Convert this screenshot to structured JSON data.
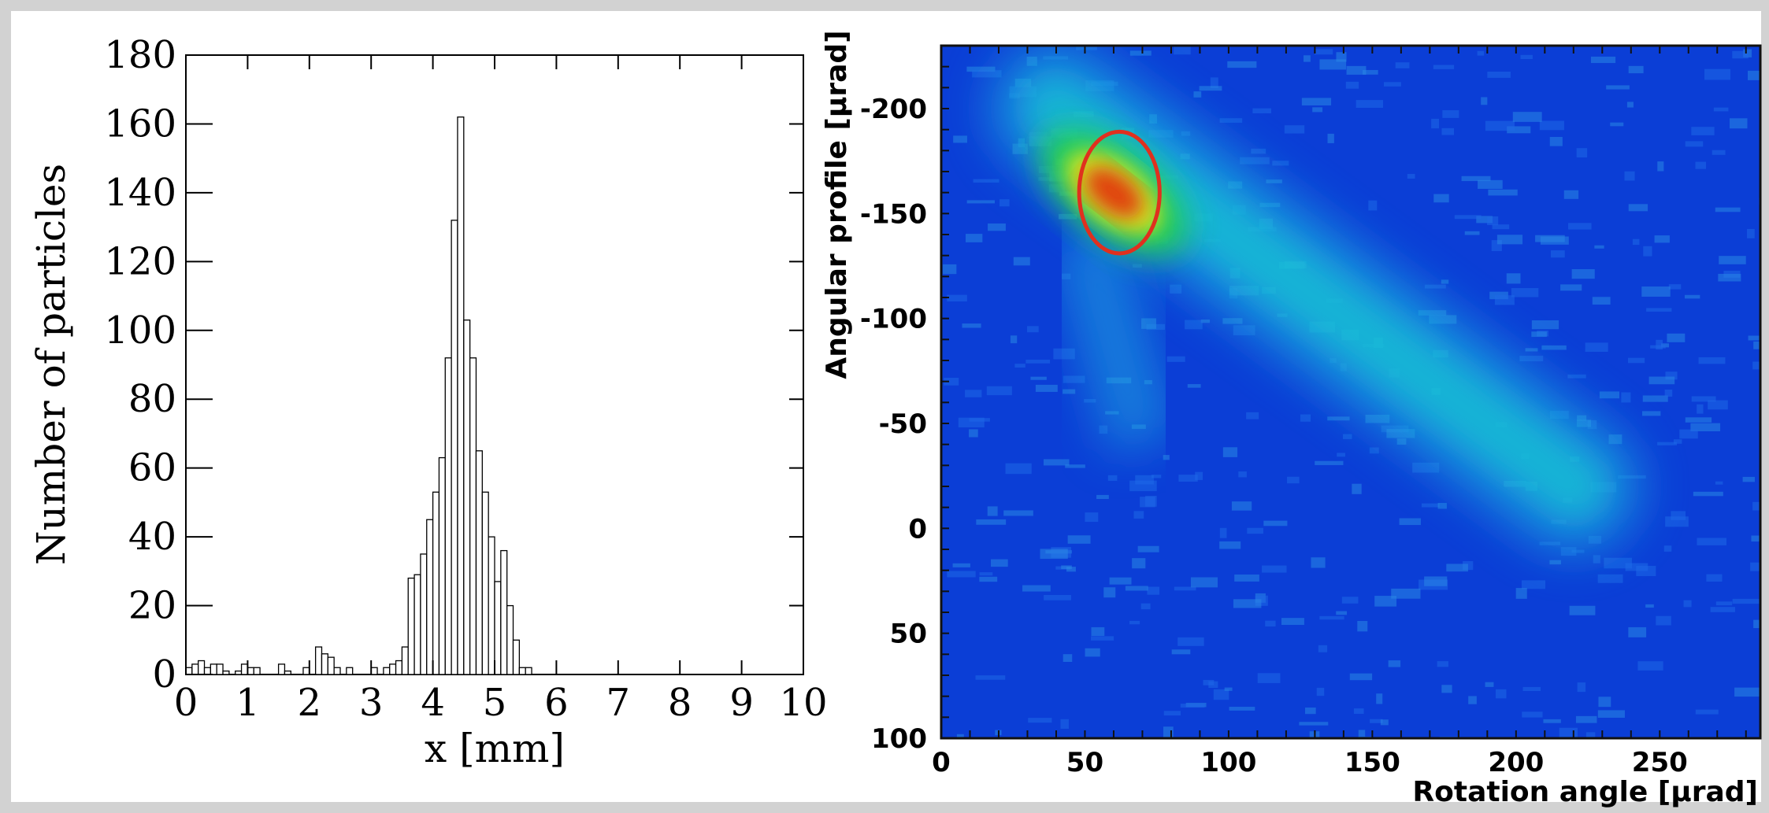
{
  "chart_data": [
    {
      "type": "bar",
      "title": "",
      "xlabel": "x [mm]",
      "ylabel": "Number of particles",
      "xlim": [
        0,
        10
      ],
      "ylim": [
        0,
        180
      ],
      "x_ticks": [
        "0",
        "1",
        "2",
        "3",
        "4",
        "5",
        "6",
        "7",
        "8",
        "9",
        "10"
      ],
      "y_ticks": [
        "0",
        "20",
        "40",
        "60",
        "80",
        "100",
        "120",
        "140",
        "160",
        "180"
      ],
      "bin_width": 0.1,
      "bins_start": 0,
      "values": [
        2,
        3,
        4,
        2,
        3,
        3,
        1,
        0,
        1,
        3,
        2,
        2,
        0,
        0,
        0,
        3,
        1,
        0,
        0,
        2,
        0,
        8,
        6,
        5,
        2,
        0,
        2,
        0,
        0,
        0,
        2,
        0,
        2,
        3,
        4,
        8,
        28,
        29,
        35,
        45,
        53,
        63,
        92,
        132,
        162,
        103,
        92,
        65,
        53,
        40,
        27,
        36,
        20,
        10,
        2,
        2,
        0,
        0,
        0,
        0,
        0,
        0,
        0,
        0,
        0,
        0,
        0,
        0,
        0,
        0,
        0,
        0,
        0,
        0,
        0,
        0,
        0,
        0,
        0,
        0,
        0,
        0,
        0,
        0,
        0,
        0,
        0,
        0,
        0,
        0,
        0,
        0,
        0,
        0,
        0,
        0,
        0,
        0,
        0,
        0
      ],
      "grid": false
    },
    {
      "type": "heatmap",
      "title": "",
      "xlabel": "Rotation angle [µrad]",
      "ylabel": "Angular profile [µrad]",
      "xlim": [
        0,
        285
      ],
      "ylim": [
        -230,
        100
      ],
      "x_ticks": [
        "0",
        "50",
        "100",
        "150",
        "200",
        "250"
      ],
      "y_ticks": [
        "-200",
        "-150",
        "-100",
        "-50",
        "0",
        "50",
        "100"
      ],
      "features": [
        {
          "kind": "band",
          "x": [
            0,
            60
          ],
          "y": 0,
          "level": "high"
        },
        {
          "kind": "band",
          "x": [
            60,
            250
          ],
          "y": 15,
          "level": "high"
        },
        {
          "kind": "band",
          "x": [
            250,
            285
          ],
          "y": 0,
          "level": "high"
        },
        {
          "kind": "diagonal",
          "from": [
            40,
            -200
          ],
          "to": [
            220,
            -20
          ],
          "level": "medium"
        },
        {
          "kind": "peak",
          "x": 60,
          "y": -160,
          "level": "max"
        }
      ],
      "annotation": {
        "shape": "ellipse",
        "cx": 62,
        "cy": -160,
        "rx": 14,
        "ry": 29,
        "color": "#e0301e"
      },
      "colors": {
        "low": "#0a3fd8",
        "mid": "#18d4d0",
        "high": "#e85a0c",
        "max": "#e23a10"
      },
      "grid": false
    }
  ]
}
